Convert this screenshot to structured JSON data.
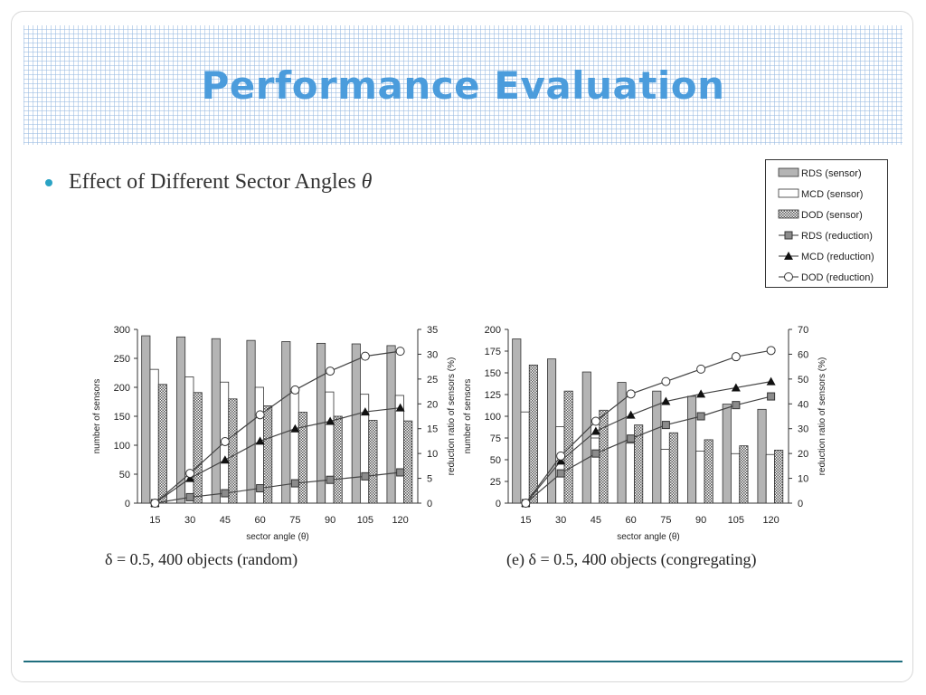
{
  "slide": {
    "title": "Performance Evaluation",
    "bullet_text": "Effect of Different Sector Angles",
    "bullet_symbol": "θ"
  },
  "legend": {
    "items": [
      {
        "label": "RDS (sensor)",
        "kind": "bar",
        "style": "gray"
      },
      {
        "label": "MCD (sensor)",
        "kind": "bar",
        "style": "white"
      },
      {
        "label": "DOD (sensor)",
        "kind": "bar",
        "style": "hatch"
      },
      {
        "label": "RDS (reduction)",
        "kind": "line",
        "marker": "square"
      },
      {
        "label": "MCD (reduction)",
        "kind": "line",
        "marker": "triangle"
      },
      {
        "label": "DOD (reduction)",
        "kind": "line",
        "marker": "circle"
      }
    ]
  },
  "captions": {
    "left": "δ = 0.5, 400 objects (random)",
    "right": "(e) δ = 0.5, 400 objects (congregating)"
  },
  "colors": {
    "title": "#4b9cdc",
    "bullet": "#2aa3c4",
    "bar_gray": "#b4b4b4",
    "rule": "#1f6e7e"
  },
  "chart_data": [
    {
      "type": "bar",
      "xlabel": "sector angle (θ)",
      "ylabel": "number of sensors",
      "y2label": "reduction ratio of sensors (%)",
      "categories": [
        "15",
        "30",
        "45",
        "60",
        "75",
        "90",
        "105",
        "120"
      ],
      "ylim": [
        0,
        300
      ],
      "yticks": [
        0,
        50,
        100,
        150,
        200,
        250,
        300
      ],
      "y2lim": [
        0,
        35
      ],
      "y2ticks": [
        0,
        5,
        10,
        15,
        20,
        25,
        30,
        35
      ],
      "series": [
        {
          "name": "RDS (sensor)",
          "axis": "left",
          "kind": "bar",
          "values": [
            289,
            287,
            284,
            281,
            279,
            276,
            275,
            272
          ]
        },
        {
          "name": "MCD (sensor)",
          "axis": "left",
          "kind": "bar",
          "values": [
            231,
            218,
            209,
            200,
            193,
            192,
            188,
            186
          ]
        },
        {
          "name": "DOD (sensor)",
          "axis": "left",
          "kind": "bar",
          "values": [
            205,
            191,
            180,
            168,
            157,
            150,
            143,
            142
          ]
        },
        {
          "name": "RDS (reduction)",
          "axis": "right",
          "kind": "line",
          "values": [
            0,
            1.2,
            2.0,
            3.0,
            4.0,
            4.7,
            5.4,
            6.2
          ]
        },
        {
          "name": "MCD (reduction)",
          "axis": "right",
          "kind": "line",
          "values": [
            0,
            5.0,
            8.7,
            12.5,
            15.0,
            16.5,
            18.4,
            19.2
          ]
        },
        {
          "name": "DOD (reduction)",
          "axis": "right",
          "kind": "line",
          "values": [
            0,
            6.0,
            12.4,
            17.8,
            22.8,
            26.6,
            29.6,
            30.6
          ]
        }
      ]
    },
    {
      "type": "bar",
      "xlabel": "sector angle (θ)",
      "ylabel": "number of sensors",
      "y2label": "reduction ratio of sensors (%)",
      "categories": [
        "15",
        "30",
        "45",
        "60",
        "75",
        "90",
        "105",
        "120"
      ],
      "ylim": [
        0,
        200
      ],
      "yticks": [
        0,
        25,
        50,
        75,
        100,
        125,
        150,
        175,
        200
      ],
      "y2lim": [
        0,
        70
      ],
      "y2ticks": [
        0,
        10,
        20,
        30,
        40,
        50,
        60,
        70
      ],
      "series": [
        {
          "name": "RDS (sensor)",
          "axis": "left",
          "kind": "bar",
          "values": [
            189,
            166,
            151,
            139,
            129,
            123,
            114,
            108
          ]
        },
        {
          "name": "MCD (sensor)",
          "axis": "left",
          "kind": "bar",
          "values": [
            105,
            88,
            75,
            69,
            62,
            60,
            57,
            56
          ]
        },
        {
          "name": "DOD (sensor)",
          "axis": "left",
          "kind": "bar",
          "values": [
            159,
            129,
            107,
            90,
            81,
            73,
            66,
            61
          ]
        },
        {
          "name": "RDS (reduction)",
          "axis": "right",
          "kind": "line",
          "values": [
            0,
            12.0,
            20.0,
            26.0,
            31.5,
            35.0,
            39.5,
            43.0
          ]
        },
        {
          "name": "MCD (reduction)",
          "axis": "right",
          "kind": "line",
          "values": [
            0,
            17.0,
            29.0,
            35.5,
            41.0,
            44.0,
            46.5,
            49.0
          ]
        },
        {
          "name": "DOD (reduction)",
          "axis": "right",
          "kind": "line",
          "values": [
            0,
            19.0,
            33.0,
            44.0,
            49.0,
            54.0,
            59.0,
            61.5
          ]
        }
      ]
    }
  ]
}
